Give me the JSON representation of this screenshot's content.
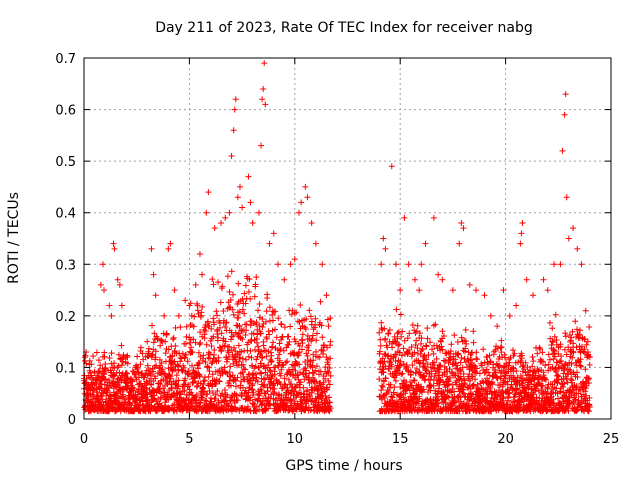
{
  "chart_data": {
    "type": "scatter",
    "title": "Day 211 of 2023, Rate Of TEC Index for receiver nabg",
    "xlabel": "GPS time / hours",
    "ylabel": "ROTI / TECUs",
    "xlim": [
      0,
      25
    ],
    "ylim": [
      0,
      0.7
    ],
    "xticks": [
      0,
      5,
      10,
      15,
      20,
      25
    ],
    "yticks": [
      0,
      0.1,
      0.2,
      0.3,
      0.4,
      0.5,
      0.6,
      0.7
    ],
    "xtick_labels": [
      "0",
      "5",
      "10",
      "15",
      "20",
      "25"
    ],
    "ytick_labels": [
      "0",
      "0.1",
      "0.2",
      "0.3",
      "0.4",
      "0.5",
      "0.6",
      "0.7"
    ],
    "grid": true,
    "marker": "+",
    "color": "#ff0000",
    "data_gap_hours": [
      11.7,
      14.0
    ],
    "series": [
      {
        "points": [
          [
            0.05,
            0.12
          ],
          [
            0.1,
            0.13
          ],
          [
            0.3,
            0.09
          ],
          [
            0.6,
            0.07
          ],
          [
            0.8,
            0.26
          ],
          [
            0.9,
            0.3
          ],
          [
            0.95,
            0.25
          ],
          [
            1.2,
            0.22
          ],
          [
            1.3,
            0.2
          ],
          [
            1.4,
            0.34
          ],
          [
            1.45,
            0.33
          ],
          [
            1.6,
            0.27
          ],
          [
            1.7,
            0.26
          ],
          [
            1.8,
            0.22
          ],
          [
            2.0,
            0.12
          ],
          [
            2.5,
            0.1
          ],
          [
            3.0,
            0.15
          ],
          [
            3.2,
            0.33
          ],
          [
            3.3,
            0.28
          ],
          [
            3.4,
            0.24
          ],
          [
            3.8,
            0.2
          ],
          [
            4.0,
            0.33
          ],
          [
            4.1,
            0.34
          ],
          [
            4.3,
            0.25
          ],
          [
            4.5,
            0.2
          ],
          [
            4.8,
            0.23
          ],
          [
            5.0,
            0.22
          ],
          [
            5.3,
            0.26
          ],
          [
            5.5,
            0.32
          ],
          [
            5.6,
            0.28
          ],
          [
            5.8,
            0.4
          ],
          [
            5.9,
            0.44
          ],
          [
            6.2,
            0.37
          ],
          [
            6.5,
            0.38
          ],
          [
            6.7,
            0.39
          ],
          [
            6.9,
            0.4
          ],
          [
            7.0,
            0.51
          ],
          [
            7.1,
            0.56
          ],
          [
            7.15,
            0.6
          ],
          [
            7.2,
            0.62
          ],
          [
            7.3,
            0.43
          ],
          [
            7.4,
            0.45
          ],
          [
            7.5,
            0.41
          ],
          [
            7.8,
            0.47
          ],
          [
            7.9,
            0.42
          ],
          [
            8.0,
            0.38
          ],
          [
            8.3,
            0.4
          ],
          [
            8.4,
            0.53
          ],
          [
            8.45,
            0.62
          ],
          [
            8.5,
            0.64
          ],
          [
            8.55,
            0.69
          ],
          [
            8.6,
            0.61
          ],
          [
            8.8,
            0.34
          ],
          [
            9.0,
            0.36
          ],
          [
            9.2,
            0.3
          ],
          [
            9.5,
            0.27
          ],
          [
            9.8,
            0.3
          ],
          [
            10.0,
            0.31
          ],
          [
            10.2,
            0.4
          ],
          [
            10.3,
            0.42
          ],
          [
            10.5,
            0.45
          ],
          [
            10.6,
            0.43
          ],
          [
            10.8,
            0.38
          ],
          [
            11.0,
            0.34
          ],
          [
            11.3,
            0.3
          ],
          [
            11.5,
            0.24
          ],
          [
            11.6,
            0.18
          ],
          [
            14.1,
            0.3
          ],
          [
            14.2,
            0.35
          ],
          [
            14.3,
            0.33
          ],
          [
            14.6,
            0.49
          ],
          [
            14.8,
            0.3
          ],
          [
            15.0,
            0.25
          ],
          [
            15.2,
            0.39
          ],
          [
            15.4,
            0.3
          ],
          [
            15.7,
            0.27
          ],
          [
            15.9,
            0.25
          ],
          [
            16.0,
            0.3
          ],
          [
            16.2,
            0.34
          ],
          [
            16.6,
            0.39
          ],
          [
            16.8,
            0.28
          ],
          [
            17.0,
            0.27
          ],
          [
            17.5,
            0.25
          ],
          [
            17.8,
            0.34
          ],
          [
            17.9,
            0.38
          ],
          [
            18.0,
            0.37
          ],
          [
            18.3,
            0.26
          ],
          [
            18.6,
            0.25
          ],
          [
            19.0,
            0.24
          ],
          [
            19.3,
            0.2
          ],
          [
            19.6,
            0.18
          ],
          [
            19.9,
            0.25
          ],
          [
            20.2,
            0.2
          ],
          [
            20.5,
            0.22
          ],
          [
            20.7,
            0.34
          ],
          [
            20.75,
            0.36
          ],
          [
            20.8,
            0.38
          ],
          [
            21.0,
            0.27
          ],
          [
            21.3,
            0.24
          ],
          [
            21.8,
            0.27
          ],
          [
            22.0,
            0.25
          ],
          [
            22.3,
            0.3
          ],
          [
            22.6,
            0.3
          ],
          [
            22.7,
            0.52
          ],
          [
            22.8,
            0.59
          ],
          [
            22.85,
            0.63
          ],
          [
            22.9,
            0.43
          ],
          [
            23.0,
            0.35
          ],
          [
            23.2,
            0.37
          ],
          [
            23.4,
            0.33
          ],
          [
            23.6,
            0.3
          ],
          [
            23.8,
            0.21
          ],
          [
            23.9,
            0.15
          ],
          [
            24.0,
            0.12
          ]
        ]
      }
    ]
  }
}
